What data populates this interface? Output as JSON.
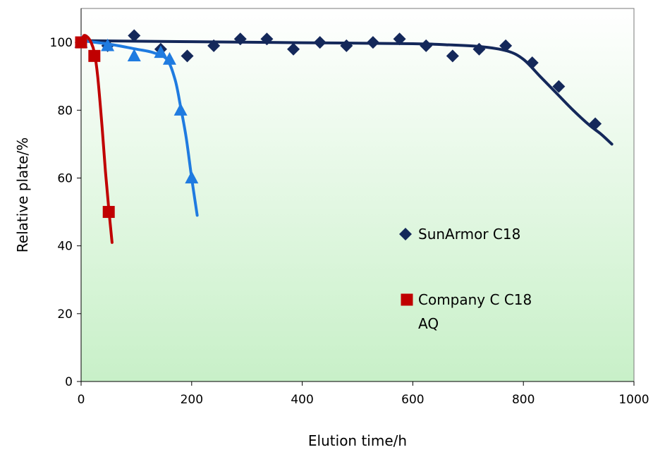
{
  "chart_data": {
    "type": "scatter",
    "xlabel": "Elution time/h",
    "ylabel": "Relative plate/%",
    "xlim": [
      0,
      1000
    ],
    "ylim": [
      0,
      110
    ],
    "x_ticks": [
      "0",
      "200",
      "400",
      "600",
      "800",
      "1000"
    ],
    "y_ticks": [
      "0",
      "20",
      "40",
      "60",
      "80",
      "100"
    ],
    "grid": false,
    "legend_placement": "center-right",
    "plot_background": [
      "#ffffff",
      "#c8f0c8"
    ],
    "series": [
      {
        "name": "SunArmor C18",
        "color": "#14285a",
        "marker": "diamond",
        "points": [
          [
            0,
            100
          ],
          [
            48,
            99
          ],
          [
            96,
            102
          ],
          [
            144,
            98
          ],
          [
            192,
            96
          ],
          [
            240,
            99
          ],
          [
            288,
            101
          ],
          [
            336,
            101
          ],
          [
            384,
            98
          ],
          [
            432,
            100
          ],
          [
            480,
            99
          ],
          [
            528,
            100
          ],
          [
            576,
            101
          ],
          [
            624,
            99
          ],
          [
            672,
            96
          ],
          [
            720,
            98
          ],
          [
            768,
            99
          ],
          [
            816,
            94
          ],
          [
            864,
            87
          ],
          [
            930,
            76
          ]
        ],
        "curve": [
          [
            0,
            100.5
          ],
          [
            200,
            100.2
          ],
          [
            400,
            99.9
          ],
          [
            600,
            99.6
          ],
          [
            660,
            99.3
          ],
          [
            720,
            98.8
          ],
          [
            770,
            97.5
          ],
          [
            800,
            95
          ],
          [
            830,
            90
          ],
          [
            860,
            85
          ],
          [
            890,
            80
          ],
          [
            920,
            75.5
          ],
          [
            940,
            73
          ],
          [
            960,
            70
          ]
        ]
      },
      {
        "name": "Company C C18 AQ",
        "color": "#c00000",
        "marker": "square",
        "points": [
          [
            0,
            100
          ],
          [
            24,
            96
          ],
          [
            50,
            50
          ]
        ],
        "curve": [
          [
            0,
            100
          ],
          [
            5,
            102
          ],
          [
            12,
            101.5
          ],
          [
            18,
            100
          ],
          [
            24,
            97
          ],
          [
            30,
            90
          ],
          [
            38,
            75
          ],
          [
            44,
            62
          ],
          [
            50,
            51
          ],
          [
            56,
            41
          ]
        ]
      },
      {
        "name": "",
        "color": "#1f7be0",
        "marker": "triangle",
        "points": [
          [
            0,
            100
          ],
          [
            48,
            99
          ],
          [
            96,
            96
          ],
          [
            144,
            97
          ],
          [
            160,
            95
          ],
          [
            180,
            80
          ],
          [
            200,
            60
          ]
        ],
        "curve": [
          [
            0,
            100.5
          ],
          [
            50,
            99.5
          ],
          [
            100,
            98
          ],
          [
            130,
            97
          ],
          [
            155,
            95
          ],
          [
            170,
            89
          ],
          [
            180,
            81
          ],
          [
            190,
            72
          ],
          [
            200,
            60
          ],
          [
            210,
            49
          ]
        ]
      }
    ]
  }
}
